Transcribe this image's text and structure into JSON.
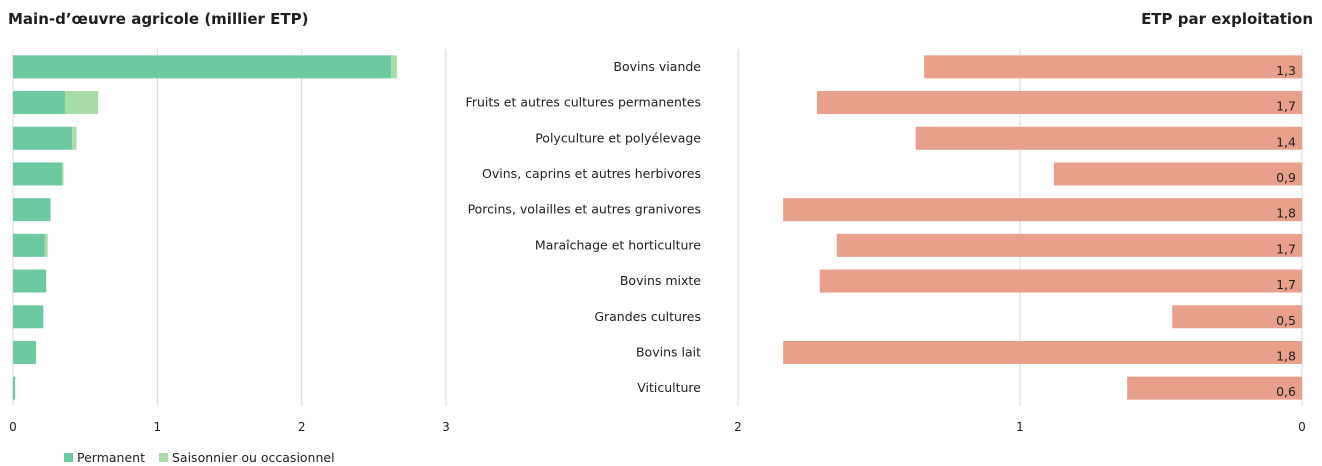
{
  "left_title": "Main-d’œuvre agricole (millier ETP)",
  "right_title": "ETP par exploitation",
  "colors": {
    "permanent": "#6cc9a0",
    "saisonnier": "#a8dca6",
    "ratio": "#e9a08a",
    "grid": "#d9d9d9"
  },
  "legend": [
    {
      "label": "Permanent",
      "color_key": "permanent"
    },
    {
      "label": "Saisonnier ou occasionnel",
      "color_key": "saisonnier"
    }
  ],
  "chart_data": [
    {
      "type": "bar",
      "orientation": "horizontal",
      "stacked": true,
      "title": "Main-d’œuvre agricole (millier ETP)",
      "categories": [
        "Bovins viande",
        "Fruits et autres cultures permanentes",
        "Polyculture et polyélevage",
        "Ovins, caprins et autres herbivores",
        "Porcins, volailles et autres granivores",
        "Maraîchage et horticulture",
        "Bovins mixte",
        "Grandes cultures",
        "Bovins lait",
        "Viticulture"
      ],
      "series": [
        {
          "name": "Permanent",
          "values": [
            2.62,
            0.36,
            0.41,
            0.34,
            0.26,
            0.22,
            0.23,
            0.21,
            0.16,
            0.015
          ]
        },
        {
          "name": "Saisonnier ou occasionnel",
          "values": [
            0.04,
            0.23,
            0.03,
            0.01,
            0.0,
            0.02,
            0.0,
            0.0,
            0.0,
            0.0
          ]
        }
      ],
      "xlim": [
        0,
        3
      ],
      "xticks": [
        "0",
        "1",
        "2",
        "3"
      ],
      "grid": true
    },
    {
      "type": "bar",
      "orientation": "horizontal",
      "reversed_axis": true,
      "title": "ETP par exploitation",
      "categories": [
        "Bovins viande",
        "Fruits et autres cultures permanentes",
        "Polyculture et polyélevage",
        "Ovins, caprins et autres herbivores",
        "Porcins, volailles et autres granivores",
        "Maraîchage et horticulture",
        "Bovins mixte",
        "Grandes cultures",
        "Bovins lait",
        "Viticulture"
      ],
      "values": [
        1.34,
        1.72,
        1.37,
        0.88,
        1.84,
        1.65,
        1.71,
        0.46,
        1.84,
        0.62
      ],
      "value_labels": [
        "1,3",
        "1,7",
        "1,4",
        "0,9",
        "1,8",
        "1,7",
        "1,7",
        "0,5",
        "1,8",
        "0,6"
      ],
      "xlim": [
        2,
        0
      ],
      "xticks": [
        "2",
        "1",
        "0"
      ],
      "grid": true
    }
  ]
}
